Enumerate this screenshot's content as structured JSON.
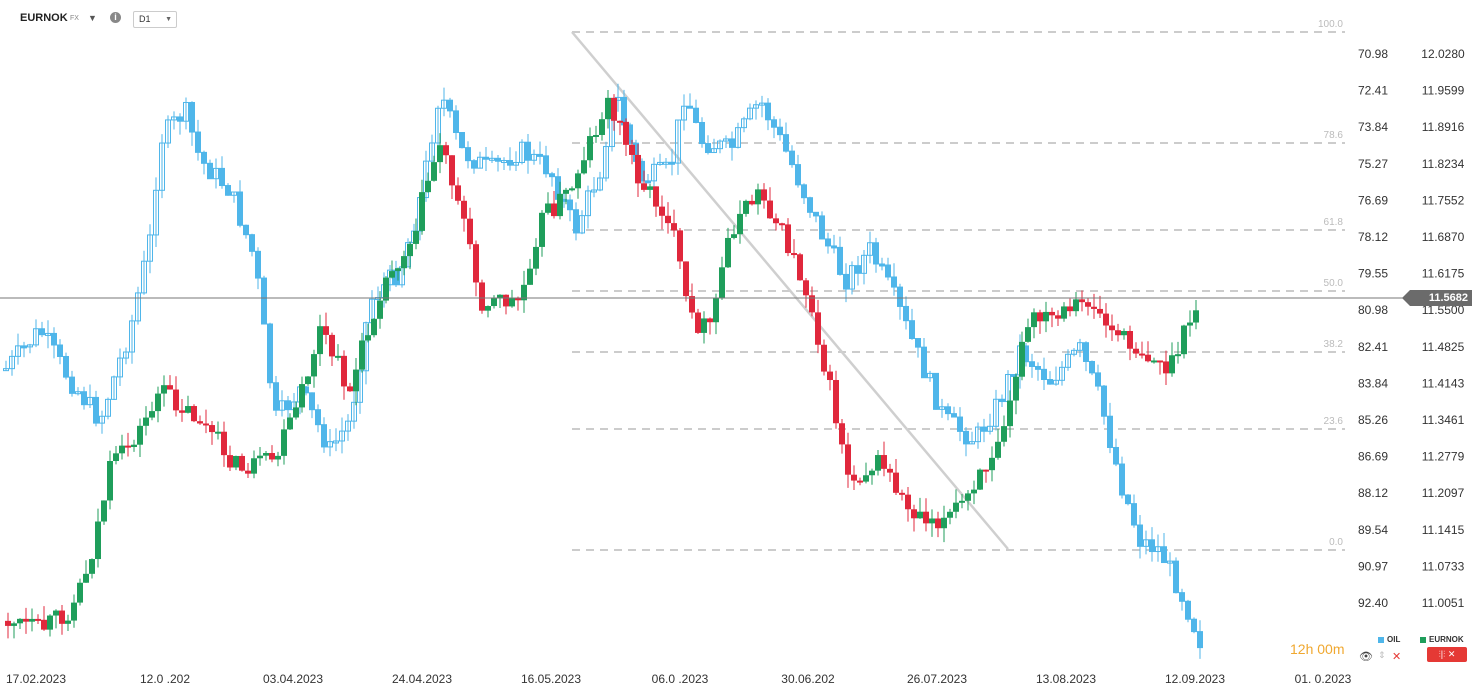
{
  "header": {
    "symbol": "EURNOK",
    "type": "FX",
    "timeframe": "D1"
  },
  "price_tag": "11.5682",
  "timer": {
    "h": "12h",
    "m": "00m"
  },
  "legend": [
    {
      "name": "OIL",
      "color": "#4fb6ea"
    },
    {
      "name": "EURNOK",
      "color": "#1f9e5b"
    }
  ],
  "chart_data": {
    "type": "candlestick",
    "x_ticks": [
      "17.02.2023",
      "12.0 .202",
      "03.04.2023",
      "24.04.2023",
      "16.05.2023",
      "06.0 .2023",
      "30.06.202",
      "26.07.2023",
      "13.08.2023",
      "12.09.2023",
      "01. 0.2023"
    ],
    "left_axis_ticks": [
      "70.98",
      "72.41",
      "73.84",
      "75.27",
      "76.69",
      "78.12",
      "79.55",
      "80.98",
      "82.41",
      "83.84",
      "85.26",
      "86.69",
      "88.12",
      "89.54",
      "90.97",
      "92.40"
    ],
    "right_axis_ticks": [
      "12.0280",
      "11.9599",
      "11.8916",
      "11.8234",
      "11.7552",
      "11.6870",
      "11.6175",
      "11.5500",
      "11.4825",
      "11.4143",
      "11.3461",
      "11.2779",
      "11.2097",
      "11.1415",
      "11.0733",
      "11.0051"
    ],
    "fib_levels": [
      "100.0",
      "78.6",
      "61.8",
      "50.0",
      "38.2",
      "23.6",
      "0.0"
    ],
    "colors": {
      "up": "#1f9e5b",
      "down": "#e0283c",
      "oil": "#4fb6ea",
      "fib": "#cccccc",
      "trend": "#c8c8c8"
    }
  }
}
